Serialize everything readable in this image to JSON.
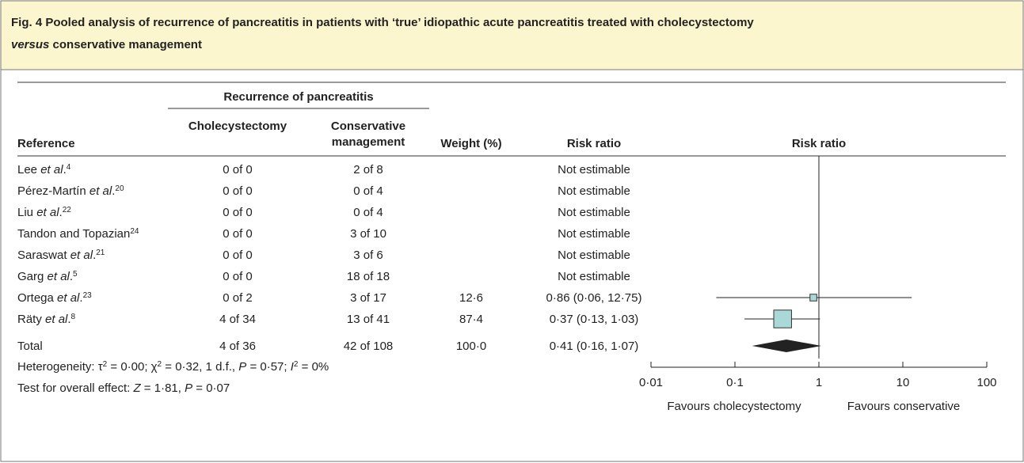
{
  "chart_data": {
    "type": "forest",
    "title": [
      [
        {
          "text": "Fig. 4 Pooled analysis of recurrence of pancreatitis in patients with ‘true’ idiopathic acute pancreatitis treated with cholecystectomy"
        }
      ],
      [
        {
          "text": "versus",
          "italic": true
        },
        {
          "text": " conservative management"
        }
      ]
    ],
    "group_header": "Recurrence of pancreatitis",
    "headers": {
      "reference": "Reference",
      "cholecystectomy": "Cholecystectomy",
      "conservative": [
        "Conservative",
        "management"
      ],
      "weight": "Weight (%)",
      "risk_ratio": "Risk ratio",
      "plot": "Risk ratio"
    },
    "studies": [
      {
        "name": [
          {
            "text": "Lee "
          },
          {
            "text": "et al",
            "italic": true
          },
          {
            "text": "."
          },
          {
            "text": "4",
            "sup": true
          }
        ],
        "cholecystectomy": "0 of 0",
        "conservative": "2 of 8",
        "rr_label": "Not estimable"
      },
      {
        "name": [
          {
            "text": "Pérez-Martín "
          },
          {
            "text": "et al",
            "italic": true
          },
          {
            "text": "."
          },
          {
            "text": "20",
            "sup": true
          }
        ],
        "cholecystectomy": "0 of 0",
        "conservative": "0 of 4",
        "rr_label": "Not estimable"
      },
      {
        "name": [
          {
            "text": "Liu "
          },
          {
            "text": "et al",
            "italic": true
          },
          {
            "text": "."
          },
          {
            "text": "22",
            "sup": true
          }
        ],
        "cholecystectomy": "0 of 0",
        "conservative": "0 of 4",
        "rr_label": "Not estimable"
      },
      {
        "name": [
          {
            "text": "Tandon and Topazian"
          },
          {
            "text": "24",
            "sup": true
          }
        ],
        "cholecystectomy": "0 of 0",
        "conservative": "3 of 10",
        "rr_label": "Not estimable"
      },
      {
        "name": [
          {
            "text": "Saraswat "
          },
          {
            "text": "et al",
            "italic": true
          },
          {
            "text": "."
          },
          {
            "text": "21",
            "sup": true
          }
        ],
        "cholecystectomy": "0 of 0",
        "conservative": "3 of 6",
        "rr_label": "Not estimable"
      },
      {
        "name": [
          {
            "text": "Garg "
          },
          {
            "text": "et al",
            "italic": true
          },
          {
            "text": "."
          },
          {
            "text": "5",
            "sup": true
          }
        ],
        "cholecystectomy": "0 of 0",
        "conservative": "18 of 18",
        "rr_label": "Not estimable"
      },
      {
        "name": [
          {
            "text": "Ortega "
          },
          {
            "text": "et al",
            "italic": true
          },
          {
            "text": "."
          },
          {
            "text": "23",
            "sup": true
          }
        ],
        "cholecystectomy": "0 of 2",
        "conservative": "3 of 17",
        "weight": 12.6,
        "weight_label": "12·6",
        "rr": 0.86,
        "lower": 0.06,
        "upper": 12.75,
        "rr_label": "0·86 (0·06, 12·75)"
      },
      {
        "name": [
          {
            "text": "Räty "
          },
          {
            "text": "et al",
            "italic": true
          },
          {
            "text": "."
          },
          {
            "text": "8",
            "sup": true
          }
        ],
        "cholecystectomy": "4 of 34",
        "conservative": "13 of 41",
        "weight": 87.4,
        "weight_label": "87·4",
        "rr": 0.37,
        "lower": 0.13,
        "upper": 1.03,
        "rr_label": "0·37 (0·13, 1·03)"
      }
    ],
    "total": {
      "name": "Total",
      "cholecystectomy": "4 of 36",
      "conservative": "42 of 108",
      "weight": 100,
      "weight_label": "100·0",
      "rr": 0.41,
      "lower": 0.16,
      "upper": 1.07,
      "rr_label": "0·41 (0·16, 1·07)"
    },
    "heterogeneity": [
      {
        "text": "Heterogeneity: τ"
      },
      {
        "text": "2",
        "sup": true
      },
      {
        "text": " = 0·00; χ"
      },
      {
        "text": "2",
        "sup": true
      },
      {
        "text": " = 0·32, 1 d.f., "
      },
      {
        "text": "P",
        "italic": true
      },
      {
        "text": " = 0·57; "
      },
      {
        "text": "I",
        "italic": true
      },
      {
        "text": "2",
        "sup": true
      },
      {
        "text": " = 0%"
      }
    ],
    "overall_effect": [
      {
        "text": "Test for overall effect: "
      },
      {
        "text": "Z",
        "italic": true
      },
      {
        "text": " = 1·81, "
      },
      {
        "text": "P",
        "italic": true
      },
      {
        "text": " = 0·07"
      }
    ],
    "log_x": true,
    "xlim": [
      0.01,
      100
    ],
    "xticks": [
      {
        "value": 0.01,
        "label": "0·01"
      },
      {
        "value": 0.1,
        "label": "0·1"
      },
      1,
      10,
      100
    ],
    "reference_line": 1,
    "x_labels": [
      "Favours cholecystectomy",
      "Favours conservative"
    ],
    "square_color": "#a9d8d6",
    "diamond_color": "#222222"
  }
}
